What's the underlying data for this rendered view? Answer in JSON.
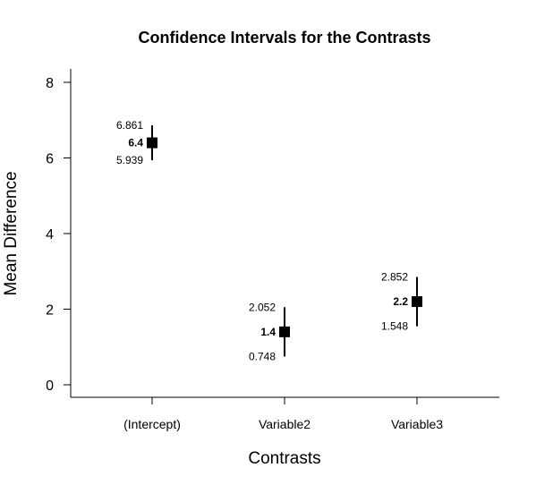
{
  "chart_data": {
    "type": "scatter",
    "title": "Confidence Intervals for the Contrasts",
    "xlabel": "Contrasts",
    "ylabel": "Mean Difference",
    "ylim": [
      0,
      8
    ],
    "yticks": [
      "0",
      "2",
      "4",
      "6",
      "8"
    ],
    "categories": [
      "(Intercept)",
      "Variable2",
      "Variable3"
    ],
    "points": [
      {
        "estimate": 6.4,
        "lower": 5.939,
        "upper": 6.861,
        "estimate_label": "6.4",
        "lower_label": "5.939",
        "upper_label": "6.861"
      },
      {
        "estimate": 1.4,
        "lower": 0.748,
        "upper": 2.052,
        "estimate_label": "1.4",
        "lower_label": "0.748",
        "upper_label": "2.052"
      },
      {
        "estimate": 2.2,
        "lower": 1.548,
        "upper": 2.852,
        "estimate_label": "2.2",
        "lower_label": "1.548",
        "upper_label": "2.852"
      }
    ],
    "grid": false,
    "legend": "none",
    "marker": "square",
    "color": "#000000"
  }
}
